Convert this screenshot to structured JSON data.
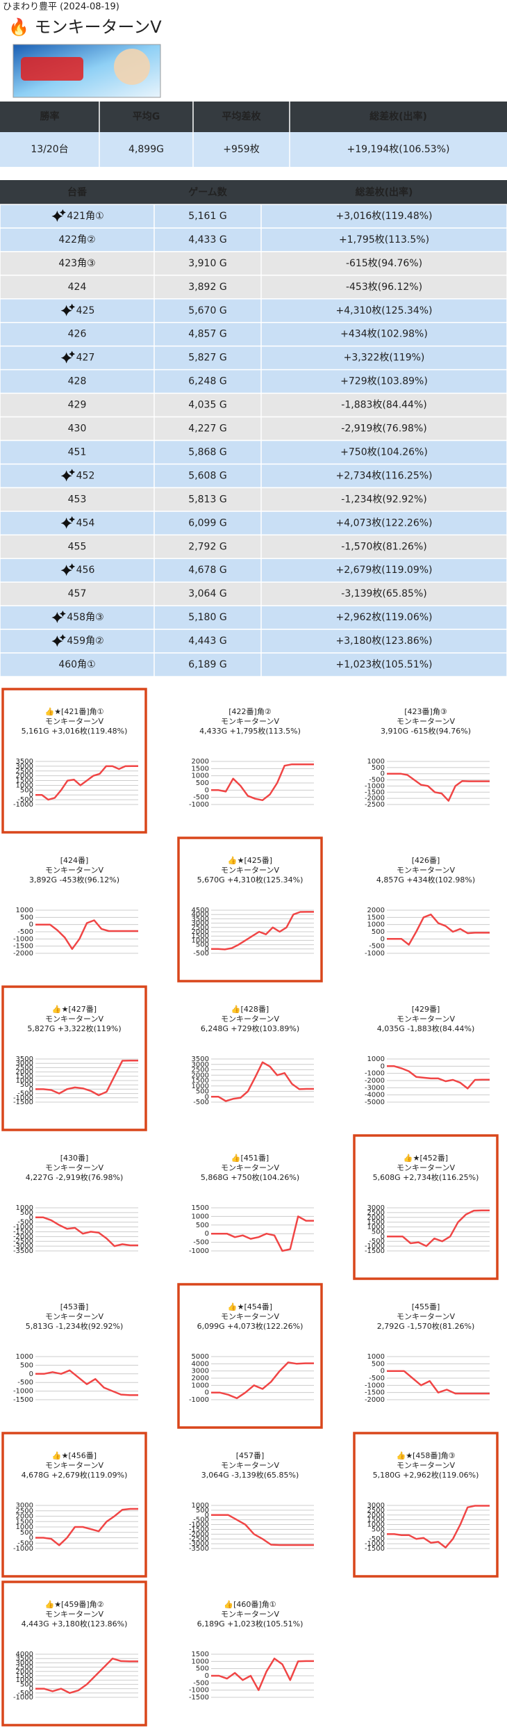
{
  "header": {
    "site": "ひまわり豊平 (2024-08-19)",
    "title": "🔥 モンキーターンV"
  },
  "summary": {
    "columns": [
      "勝率",
      "平均G",
      "平均差枚",
      "総差枚(出率)"
    ],
    "values": [
      "13/20台",
      "4,899G",
      "+959枚",
      "+19,194枚(106.53%)"
    ]
  },
  "table": {
    "columns": [
      "台番",
      "ゲーム数",
      "総差枚(出率)"
    ],
    "rows": [
      {
        "machine": "421角①",
        "games": "5,161 G",
        "diff": "+3,016枚(119.48%)",
        "sparkle": true,
        "color": "#c9dff5"
      },
      {
        "machine": "422角②",
        "games": "4,433 G",
        "diff": "+1,795枚(113.5%)",
        "sparkle": false,
        "color": "#c9dff5"
      },
      {
        "machine": "423角③",
        "games": "3,910 G",
        "diff": "-615枚(94.76%)",
        "sparkle": false,
        "color": "#e6e6e6"
      },
      {
        "machine": "424",
        "games": "3,892 G",
        "diff": "-453枚(96.12%)",
        "sparkle": false,
        "color": "#e6e6e6"
      },
      {
        "machine": "425",
        "games": "5,670 G",
        "diff": "+4,310枚(125.34%)",
        "sparkle": true,
        "color": "#c9dff5"
      },
      {
        "machine": "426",
        "games": "4,857 G",
        "diff": "+434枚(102.98%)",
        "sparkle": false,
        "color": "#c9dff5"
      },
      {
        "machine": "427",
        "games": "5,827 G",
        "diff": "+3,322枚(119%)",
        "sparkle": true,
        "color": "#c9dff5"
      },
      {
        "machine": "428",
        "games": "6,248 G",
        "diff": "+729枚(103.89%)",
        "sparkle": false,
        "color": "#c9dff5"
      },
      {
        "machine": "429",
        "games": "4,035 G",
        "diff": "-1,883枚(84.44%)",
        "sparkle": false,
        "color": "#e6e6e6"
      },
      {
        "machine": "430",
        "games": "4,227 G",
        "diff": "-2,919枚(76.98%)",
        "sparkle": false,
        "color": "#e6e6e6"
      },
      {
        "machine": "451",
        "games": "5,868 G",
        "diff": "+750枚(104.26%)",
        "sparkle": false,
        "color": "#c9dff5"
      },
      {
        "machine": "452",
        "games": "5,608 G",
        "diff": "+2,734枚(116.25%)",
        "sparkle": true,
        "color": "#c9dff5"
      },
      {
        "machine": "453",
        "games": "5,813 G",
        "diff": "-1,234枚(92.92%)",
        "sparkle": false,
        "color": "#e6e6e6"
      },
      {
        "machine": "454",
        "games": "6,099 G",
        "diff": "+4,073枚(122.26%)",
        "sparkle": true,
        "color": "#c9dff5"
      },
      {
        "machine": "455",
        "games": "2,792 G",
        "diff": "-1,570枚(81.26%)",
        "sparkle": false,
        "color": "#e6e6e6"
      },
      {
        "machine": "456",
        "games": "4,678 G",
        "diff": "+2,679枚(119.09%)",
        "sparkle": true,
        "color": "#c9dff5"
      },
      {
        "machine": "457",
        "games": "3,064 G",
        "diff": "-3,139枚(65.85%)",
        "sparkle": false,
        "color": "#e6e6e6"
      },
      {
        "machine": "458角③",
        "games": "5,180 G",
        "diff": "+2,962枚(119.06%)",
        "sparkle": true,
        "color": "#c9dff5"
      },
      {
        "machine": "459角②",
        "games": "4,443 G",
        "diff": "+3,180枚(123.86%)",
        "sparkle": true,
        "color": "#c9dff5"
      },
      {
        "machine": "460角①",
        "games": "6,189 G",
        "diff": "+1,023枚(105.51%)",
        "sparkle": false,
        "color": "#c9dff5"
      }
    ]
  },
  "charts": [
    {
      "title": "👍★[421番]角①",
      "model": "モンキーターンV",
      "stats": "5,161G +3,016枚(119.48%)",
      "highlighted": true,
      "chart_data": {
        "type": "line",
        "color": "#f04545",
        "ylim": [
          -1000,
          3500
        ],
        "yticks": [
          3500,
          3000,
          2500,
          2000,
          1500,
          1000,
          500,
          0,
          -500,
          -1000
        ],
        "values": [
          0,
          0,
          -500,
          -300,
          500,
          1500,
          1600,
          1000,
          1500,
          2000,
          2200,
          3000,
          3000,
          2700,
          3000,
          3016,
          3016
        ]
      }
    },
    {
      "title": "[422番]角②",
      "model": "モンキーターンV",
      "stats": "4,433G +1,795枚(113.5%)",
      "highlighted": false,
      "chart_data": {
        "type": "line",
        "color": "#f04545",
        "ylim": [
          -1000,
          2000
        ],
        "yticks": [
          2000,
          1500,
          1000,
          500,
          0,
          -500,
          -1000
        ],
        "values": [
          0,
          0,
          -100,
          800,
          300,
          -400,
          -600,
          -700,
          -300,
          500,
          1700,
          1795,
          1795,
          1795,
          1795
        ]
      }
    },
    {
      "title": "[423番]角③",
      "model": "モンキーターンV",
      "stats": "3,910G -615枚(94.76%)",
      "highlighted": false,
      "chart_data": {
        "type": "line",
        "color": "#f04545",
        "ylim": [
          -2500,
          1000
        ],
        "yticks": [
          1000,
          500,
          0,
          -500,
          -1000,
          -1500,
          -2000,
          -2500
        ],
        "values": [
          0,
          0,
          0,
          -100,
          -500,
          -900,
          -1000,
          -1500,
          -1600,
          -2200,
          -1000,
          -600,
          -615,
          -615,
          -615,
          -615
        ]
      }
    },
    {
      "title": "[424番]",
      "model": "モンキーターンV",
      "stats": "3,892G -453枚(96.12%)",
      "highlighted": false,
      "chart_data": {
        "type": "line",
        "color": "#f04545",
        "ylim": [
          -2000,
          1000
        ],
        "yticks": [
          1000,
          500,
          0,
          -500,
          -1000,
          -1500,
          -2000
        ],
        "values": [
          0,
          0,
          0,
          -400,
          -900,
          -1700,
          -1000,
          100,
          300,
          -300,
          -450,
          -453,
          -453,
          -453,
          -453
        ]
      }
    },
    {
      "title": "👍★[425番]",
      "model": "モンキーターンV",
      "stats": "5,670G +4,310枚(125.34%)",
      "highlighted": true,
      "chart_data": {
        "type": "line",
        "color": "#f04545",
        "ylim": [
          -500,
          4500
        ],
        "yticks": [
          4500,
          4000,
          3500,
          3000,
          2500,
          2000,
          1500,
          1000,
          500,
          0,
          -500
        ],
        "values": [
          0,
          0,
          -50,
          100,
          500,
          1000,
          1500,
          2000,
          1700,
          2500,
          2000,
          2500,
          4000,
          4300,
          4310,
          4310
        ]
      }
    },
    {
      "title": "[426番]",
      "model": "モンキーターンV",
      "stats": "4,857G +434枚(102.98%)",
      "highlighted": false,
      "chart_data": {
        "type": "line",
        "color": "#f04545",
        "ylim": [
          -1000,
          2000
        ],
        "yticks": [
          2000,
          1500,
          1000,
          500,
          0,
          -500,
          -1000
        ],
        "values": [
          0,
          0,
          0,
          -400,
          500,
          1500,
          1700,
          1100,
          900,
          500,
          700,
          400,
          434,
          434,
          434
        ]
      }
    },
    {
      "title": "👍★[427番]",
      "model": "モンキーターンV",
      "stats": "5,827G +3,322枚(119%)",
      "highlighted": true,
      "chart_data": {
        "type": "line",
        "color": "#f04545",
        "ylim": [
          -1500,
          3500
        ],
        "yticks": [
          3500,
          3000,
          2500,
          2000,
          1500,
          1000,
          500,
          0,
          -500,
          -1000,
          -1500
        ],
        "values": [
          0,
          0,
          -100,
          -500,
          0,
          200,
          100,
          -200,
          -700,
          -300,
          1500,
          3300,
          3322,
          3322
        ]
      }
    },
    {
      "title": "👍[428番]",
      "model": "モンキーターンV",
      "stats": "6,248G +729枚(103.89%)",
      "highlighted": false,
      "chart_data": {
        "type": "line",
        "color": "#f04545",
        "ylim": [
          -500,
          3500
        ],
        "yticks": [
          3500,
          3000,
          2500,
          2000,
          1500,
          1000,
          500,
          0,
          -500
        ],
        "values": [
          0,
          0,
          -400,
          -200,
          -100,
          500,
          1800,
          3200,
          2800,
          2000,
          2200,
          1200,
          700,
          729,
          729
        ]
      }
    },
    {
      "title": "[429番]",
      "model": "モンキーターンV",
      "stats": "4,035G -1,883枚(84.44%)",
      "highlighted": false,
      "chart_data": {
        "type": "line",
        "color": "#f04545",
        "ylim": [
          -5000,
          1000
        ],
        "yticks": [
          1000,
          0,
          -1000,
          -2000,
          -3000,
          -4000,
          -5000
        ],
        "values": [
          0,
          0,
          -300,
          -700,
          -1500,
          -1600,
          -1700,
          -1700,
          -2100,
          -1900,
          -2300,
          -3100,
          -1900,
          -1883,
          -1883
        ]
      }
    },
    {
      "title": "[430番]",
      "model": "モンキーターンV",
      "stats": "4,227G -2,919枚(76.98%)",
      "highlighted": false,
      "chart_data": {
        "type": "line",
        "color": "#f04545",
        "ylim": [
          -3500,
          1000
        ],
        "yticks": [
          1000,
          500,
          0,
          -500,
          -1000,
          -1500,
          -2000,
          -2500,
          -3000,
          -3500
        ],
        "values": [
          0,
          0,
          -300,
          -800,
          -1200,
          -1100,
          -1700,
          -1500,
          -1600,
          -2200,
          -3000,
          -2800,
          -2919,
          -2919
        ]
      }
    },
    {
      "title": "👍[451番]",
      "model": "モンキーターンV",
      "stats": "5,868G +750枚(104.26%)",
      "highlighted": false,
      "chart_data": {
        "type": "line",
        "color": "#f04545",
        "ylim": [
          -1000,
          1500
        ],
        "yticks": [
          1500,
          1000,
          500,
          0,
          -500,
          -1000
        ],
        "values": [
          0,
          0,
          0,
          -200,
          -100,
          -300,
          -200,
          0,
          -100,
          -1000,
          -900,
          1000,
          750,
          750
        ]
      }
    },
    {
      "title": "👍★[452番]",
      "model": "モンキーターンV",
      "stats": "5,608G +2,734枚(116.25%)",
      "highlighted": true,
      "chart_data": {
        "type": "line",
        "color": "#f04545",
        "ylim": [
          -1500,
          3000
        ],
        "yticks": [
          3000,
          2500,
          2000,
          1500,
          1000,
          500,
          0,
          -500,
          -1000,
          -1500
        ],
        "values": [
          0,
          0,
          0,
          -700,
          -600,
          -1000,
          -200,
          -500,
          0,
          1500,
          2300,
          2700,
          2734,
          2734
        ]
      }
    },
    {
      "title": "[453番]",
      "model": "モンキーターンV",
      "stats": "5,813G -1,234枚(92.92%)",
      "highlighted": false,
      "chart_data": {
        "type": "line",
        "color": "#f04545",
        "ylim": [
          -1500,
          1000
        ],
        "yticks": [
          1000,
          500,
          0,
          -500,
          -1000,
          -1500
        ],
        "values": [
          0,
          0,
          100,
          0,
          200,
          -200,
          -600,
          -300,
          -800,
          -1000,
          -1200,
          -1234,
          -1234
        ]
      }
    },
    {
      "title": "👍★[454番]",
      "model": "モンキーターンV",
      "stats": "6,099G +4,073枚(122.26%)",
      "highlighted": true,
      "chart_data": {
        "type": "line",
        "color": "#f04545",
        "ylim": [
          -1000,
          5000
        ],
        "yticks": [
          5000,
          4000,
          3000,
          2000,
          1000,
          0,
          -1000
        ],
        "values": [
          0,
          0,
          -300,
          -800,
          0,
          1000,
          500,
          1500,
          3000,
          4200,
          4000,
          4073,
          4073
        ]
      }
    },
    {
      "title": "[455番]",
      "model": "モンキーターンV",
      "stats": "2,792G -1,570枚(81.26%)",
      "highlighted": false,
      "chart_data": {
        "type": "line",
        "color": "#f04545",
        "ylim": [
          -2000,
          1000
        ],
        "yticks": [
          1000,
          500,
          0,
          -500,
          -1000,
          -1500,
          -2000
        ],
        "values": [
          0,
          0,
          0,
          -500,
          -1000,
          -700,
          -1500,
          -1300,
          -1570,
          -1570,
          -1570,
          -1570,
          -1570
        ]
      }
    },
    {
      "title": "👍★[456番]",
      "model": "モンキーターンV",
      "stats": "4,678G +2,679枚(119.09%)",
      "highlighted": true,
      "chart_data": {
        "type": "line",
        "color": "#f04545",
        "ylim": [
          -1000,
          3000
        ],
        "yticks": [
          3000,
          2500,
          2000,
          1500,
          1000,
          500,
          0,
          -500,
          -1000
        ],
        "values": [
          0,
          0,
          -100,
          -700,
          0,
          1000,
          1000,
          800,
          600,
          1500,
          2000,
          2600,
          2679,
          2679
        ]
      }
    },
    {
      "title": "[457番]",
      "model": "モンキーターンV",
      "stats": "3,064G -3,139枚(65.85%)",
      "highlighted": false,
      "chart_data": {
        "type": "line",
        "color": "#f04545",
        "ylim": [
          -3500,
          1000
        ],
        "yticks": [
          1000,
          500,
          0,
          -500,
          -1000,
          -1500,
          -2000,
          -2500,
          -3000,
          -3500
        ],
        "values": [
          0,
          0,
          0,
          -500,
          -1000,
          -2000,
          -2500,
          -3100,
          -3139,
          -3139,
          -3139,
          -3139,
          -3139
        ]
      }
    },
    {
      "title": "👍★[458番]角③",
      "model": "モンキーターンV",
      "stats": "5,180G +2,962枚(119.06%)",
      "highlighted": true,
      "chart_data": {
        "type": "line",
        "color": "#f04545",
        "ylim": [
          -1500,
          3000
        ],
        "yticks": [
          3000,
          2500,
          2000,
          1500,
          1000,
          500,
          0,
          -500,
          -1000,
          -1500
        ],
        "values": [
          0,
          0,
          -100,
          -100,
          -500,
          -400,
          -900,
          -800,
          -1400,
          -500,
          1000,
          2800,
          2962,
          2962,
          2962
        ]
      }
    },
    {
      "title": "👍★[459番]角②",
      "model": "モンキーターンV",
      "stats": "4,443G +3,180枚(123.86%)",
      "highlighted": true,
      "chart_data": {
        "type": "line",
        "color": "#f04545",
        "ylim": [
          -1000,
          4000
        ],
        "yticks": [
          4000,
          3500,
          3000,
          2500,
          2000,
          1500,
          1000,
          500,
          0,
          -500,
          -1000
        ],
        "values": [
          0,
          0,
          -300,
          0,
          -500,
          -200,
          500,
          1500,
          2500,
          3500,
          3200,
          3180,
          3180
        ]
      }
    },
    {
      "title": "👍[460番]角①",
      "model": "モンキーターンV",
      "stats": "6,189G +1,023枚(105.51%)",
      "highlighted": false,
      "chart_data": {
        "type": "line",
        "color": "#f04545",
        "ylim": [
          -1500,
          1500
        ],
        "yticks": [
          1500,
          1000,
          500,
          0,
          -500,
          -1000,
          -1500
        ],
        "values": [
          0,
          0,
          -200,
          200,
          -300,
          0,
          -1000,
          300,
          1200,
          800,
          -300,
          1000,
          1023,
          1023
        ]
      }
    }
  ]
}
